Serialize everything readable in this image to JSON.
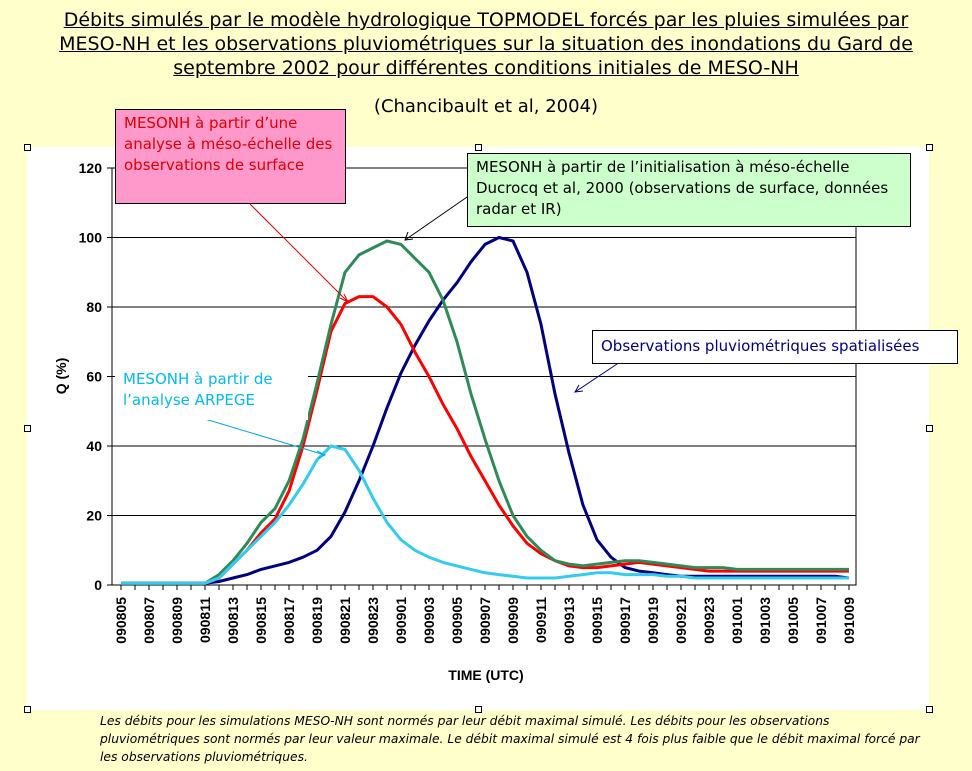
{
  "title": {
    "line1": "Débits simulés par le modèle hydrologique TOPMODEL forcés par les pluies simulées par",
    "line2": "MESO-NH et les observations pluviométriques sur la situation des inondations du Gard de",
    "line3": "septembre 2002 pour différentes conditions initiales de MESO-NH"
  },
  "citation": "(Chancibault et al, 2004)",
  "callouts": {
    "meso_analysis": "MESONH à partir d’une analyse à méso-échelle des observations de surface",
    "ducrocq": "MESONH à partir de l’initialisation à  méso-échelle Ducrocq et al, 2000 (observations de surface, données radar et IR)",
    "observations": "Observations pluviométriques spatialisées",
    "arpege": "MESONH à partir de l’analyse ARPEGE"
  },
  "footnote": "Les débits pour les simulations MESO-NH sont normés par leur débit maximal simulé. Les débits pour les observations pluviométriques sont normés par leur valeur maximale. Le débit maximal simulé est 4 fois plus faible que le débit maximal forcé par les observations pluviométriques.",
  "chart_data": {
    "type": "line",
    "xlabel": "TIME (UTC)",
    "ylabel": "Q (%)",
    "ylim": [
      0,
      120
    ],
    "yticks": [
      0,
      20,
      40,
      60,
      80,
      100,
      120
    ],
    "grid": true,
    "x": [
      "090805",
      "090806",
      "090807",
      "090808",
      "090809",
      "090810",
      "090811",
      "090812",
      "090813",
      "090814",
      "090815",
      "090816",
      "090817",
      "090818",
      "090819",
      "090820",
      "090821",
      "090822",
      "090823",
      "090900",
      "090901",
      "090902",
      "090903",
      "090904",
      "090905",
      "090906",
      "090907",
      "090908",
      "090909",
      "090910",
      "090911",
      "090912",
      "090913",
      "090914",
      "090915",
      "090916",
      "090917",
      "090918",
      "090919",
      "090920",
      "090921",
      "090922",
      "090923",
      "091000",
      "091001",
      "091002",
      "091003",
      "091004",
      "091005",
      "091006",
      "091007",
      "091008",
      "091009"
    ],
    "xticklabels": [
      "090805",
      "090807",
      "090809",
      "090811",
      "090813",
      "090815",
      "090817",
      "090819",
      "090821",
      "090823",
      "090901",
      "090903",
      "090905",
      "090907",
      "090909",
      "090911",
      "090913",
      "090915",
      "090917",
      "090919",
      "090921",
      "090923",
      "091001",
      "091003",
      "091005",
      "091007",
      "091009"
    ],
    "series": [
      {
        "color": "#000080",
        "values": [
          0.5,
          0.5,
          0.5,
          0.5,
          0.5,
          0.5,
          0.5,
          1,
          2,
          3,
          4.5,
          5.5,
          6.5,
          8,
          10,
          14,
          21,
          30,
          40,
          51,
          61,
          69,
          76,
          82,
          87,
          93,
          98,
          100,
          99,
          90,
          75,
          55,
          38,
          23,
          13,
          8,
          5,
          4,
          3.5,
          3,
          2.5,
          2.5,
          2.5,
          2.5,
          2.5,
          2.5,
          2.5,
          2.5,
          2.5,
          2.5,
          2.5,
          2.5,
          2
        ]
      },
      {
        "color": "#ff0000",
        "values": [
          0.5,
          0.5,
          0.5,
          0.5,
          0.5,
          0.5,
          0.5,
          2,
          6,
          10,
          15,
          19,
          27,
          40,
          56,
          73,
          81,
          83,
          83,
          80,
          75,
          67,
          60,
          52,
          45,
          37,
          30,
          23,
          17,
          12,
          9,
          7,
          5.5,
          5,
          5,
          5.5,
          6,
          6.5,
          6,
          5.5,
          5,
          4.5,
          4,
          4,
          4,
          4,
          4,
          4,
          4,
          4,
          4,
          4,
          4
        ]
      },
      {
        "color": "#2e8b57",
        "values": [
          0.5,
          0.5,
          0.5,
          0.5,
          0.5,
          0.5,
          0.5,
          3,
          7,
          12,
          18,
          22,
          30,
          42,
          58,
          75,
          90,
          95,
          97,
          99,
          98,
          94,
          90,
          82,
          70,
          55,
          42,
          30,
          20,
          14,
          10,
          7,
          6,
          5.5,
          6,
          6.5,
          7,
          7,
          6.5,
          6,
          5.5,
          5,
          5,
          5,
          4.5,
          4.5,
          4.5,
          4.5,
          4.5,
          4.5,
          4.5,
          4.5,
          4.5
        ]
      },
      {
        "color": "#33ccee",
        "values": [
          0.5,
          0.5,
          0.5,
          0.5,
          0.5,
          0.5,
          0.5,
          2,
          6,
          10,
          14,
          18,
          23,
          29,
          36,
          40,
          39,
          33,
          25,
          18,
          13,
          10,
          8,
          6.5,
          5.5,
          4.5,
          3.5,
          3,
          2.5,
          2,
          2,
          2,
          2.5,
          3,
          3.5,
          3.5,
          3,
          3,
          3,
          2.5,
          2.5,
          2,
          2,
          2,
          2,
          2,
          2,
          2,
          2,
          2,
          2,
          2,
          2
        ]
      }
    ]
  }
}
